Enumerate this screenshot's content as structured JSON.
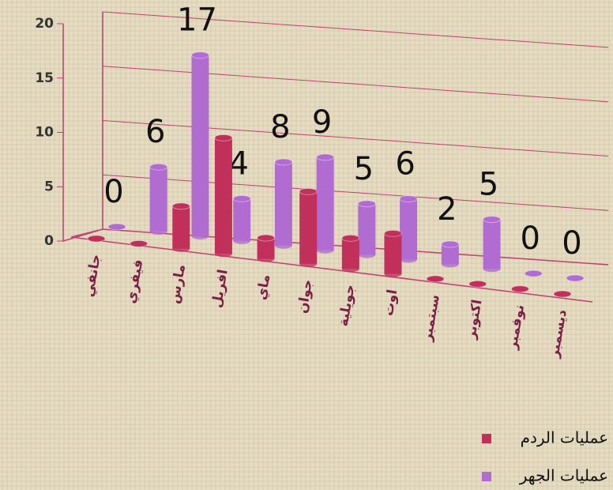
{
  "chart_data": {
    "type": "bar3d",
    "categories": [
      "جانفي",
      "فيفري",
      "مارس",
      "افريل",
      "ماي",
      "جوان",
      "جويلية",
      "اوت",
      "سبتمبر",
      "اكتوبر",
      "نوفمبر",
      "ديسمبر"
    ],
    "series": [
      {
        "name": "عمليات الردم",
        "color": "#c0305a",
        "values": [
          0,
          0,
          4,
          11,
          2,
          7,
          3,
          4,
          0,
          0,
          0,
          0
        ]
      },
      {
        "name": "عمليات الجهر",
        "color": "#b06cd0",
        "values": [
          0,
          6,
          17,
          4,
          8,
          9,
          5,
          6,
          2,
          5,
          0,
          0
        ]
      }
    ],
    "ylim": [
      0,
      20
    ],
    "yticks": [
      0,
      5,
      10,
      15,
      20
    ],
    "grid": true
  }
}
